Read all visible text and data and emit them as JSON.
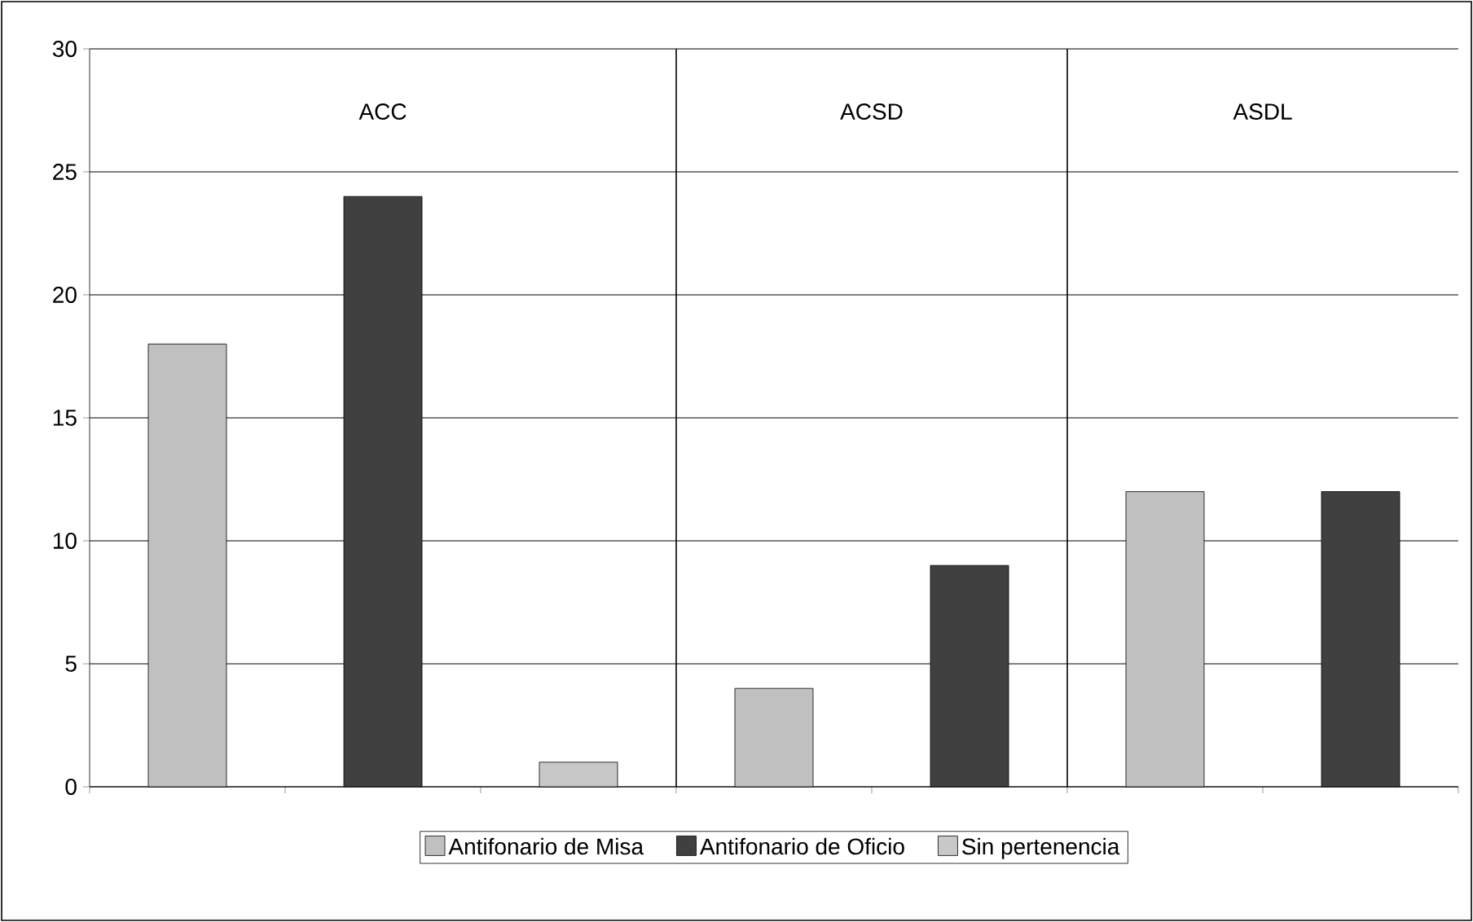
{
  "chart_data": {
    "type": "bar",
    "categories": [
      null,
      null,
      null,
      null,
      null,
      null,
      null
    ],
    "series": [
      {
        "name": "Antifonario de Misa",
        "color": "#c0c0c0",
        "values": [
          18,
          null,
          null,
          4,
          null,
          12,
          null
        ]
      },
      {
        "name": "Antifonario de Oficio",
        "color": "#404040",
        "values": [
          null,
          24,
          null,
          null,
          9,
          null,
          12
        ]
      },
      {
        "name": "Sin pertenencia",
        "color": "#c8c8c8",
        "values": [
          null,
          null,
          1,
          null,
          null,
          null,
          null
        ]
      }
    ],
    "annotations": [
      "ACC",
      "ACSD",
      "ASDL"
    ],
    "ylim": [
      0,
      30
    ],
    "yticks": [
      0,
      5,
      10,
      15,
      20,
      25,
      30
    ],
    "grid": "y",
    "legend": "bottom"
  }
}
